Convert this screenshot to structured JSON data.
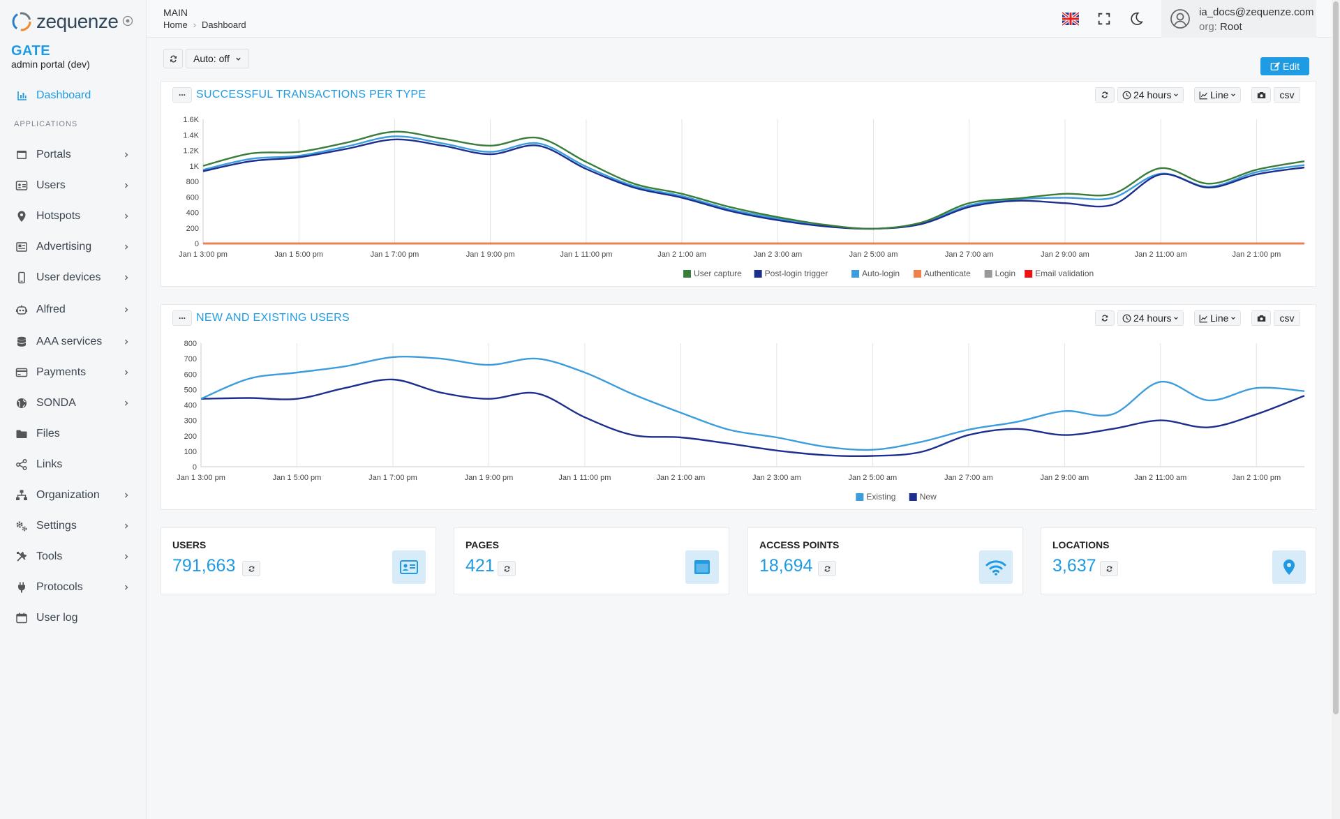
{
  "app": {
    "logo_text": "zequenze",
    "name": "GATE",
    "subtitle": "admin portal (dev)"
  },
  "colors": {
    "accent": "#1e9be3",
    "sidebar_bg": "#f5f6f8"
  },
  "sidebar": {
    "dashboard_label": "Dashboard",
    "section_title": "APPLICATIONS",
    "items": [
      {
        "label": "Portals",
        "icon": "window-icon",
        "has_chevron": true
      },
      {
        "label": "Users",
        "icon": "id-card-icon",
        "has_chevron": true
      },
      {
        "label": "Hotspots",
        "icon": "map-pin-icon",
        "has_chevron": true
      },
      {
        "label": "Advertising",
        "icon": "newspaper-icon",
        "has_chevron": true
      },
      {
        "label": "User devices",
        "icon": "mobile-icon",
        "has_chevron": true
      },
      {
        "label": "Alfred",
        "icon": "robot-icon",
        "has_chevron": true
      },
      {
        "label": "AAA services",
        "icon": "database-icon",
        "has_chevron": true
      },
      {
        "label": "Payments",
        "icon": "credit-card-icon",
        "has_chevron": true
      },
      {
        "label": "SONDA",
        "icon": "globe-icon",
        "has_chevron": true
      },
      {
        "label": "Files",
        "icon": "folder-icon",
        "has_chevron": false
      },
      {
        "label": "Links",
        "icon": "share-icon",
        "has_chevron": false
      },
      {
        "label": "Organization",
        "icon": "sitemap-icon",
        "has_chevron": true
      },
      {
        "label": "Settings",
        "icon": "gears-icon",
        "has_chevron": true
      },
      {
        "label": "Tools",
        "icon": "tools-icon",
        "has_chevron": true
      },
      {
        "label": "Protocols",
        "icon": "plug-icon",
        "has_chevron": true
      },
      {
        "label": "User log",
        "icon": "calendar-icon",
        "has_chevron": false
      }
    ]
  },
  "header": {
    "section": "MAIN",
    "breadcrumb": [
      "Home",
      "Dashboard"
    ],
    "user_email": "ia_docs@zequenze.com",
    "org_label": "org:",
    "org_value": "Root"
  },
  "toolbar": {
    "auto_label": "Auto: off",
    "edit_label": "Edit"
  },
  "panels": [
    {
      "title": "SUCCESSFUL TRANSACTIONS PER TYPE",
      "range_label": "24 hours",
      "chart_type_label": "Line",
      "csv_label": "csv"
    },
    {
      "title": "NEW AND EXISTING USERS",
      "range_label": "24 hours",
      "chart_type_label": "Line",
      "csv_label": "csv"
    }
  ],
  "chart_data": [
    {
      "type": "line",
      "title": "SUCCESSFUL TRANSACTIONS PER TYPE",
      "x": [
        "Jan 1 3:00 pm",
        "Jan 1 4:00 pm",
        "Jan 1 5:00 pm",
        "Jan 1 6:00 pm",
        "Jan 1 7:00 pm",
        "Jan 1 8:00 pm",
        "Jan 1 9:00 pm",
        "Jan 1 10:00 pm",
        "Jan 1 11:00 pm",
        "Jan 2 12:00 am",
        "Jan 2 1:00 am",
        "Jan 2 2:00 am",
        "Jan 2 3:00 am",
        "Jan 2 4:00 am",
        "Jan 2 5:00 am",
        "Jan 2 6:00 am",
        "Jan 2 7:00 am",
        "Jan 2 8:00 am",
        "Jan 2 9:00 am",
        "Jan 2 10:00 am",
        "Jan 2 11:00 am",
        "Jan 2 12:00 pm",
        "Jan 2 1:00 pm",
        "Jan 2 2:00 pm"
      ],
      "xticks": [
        "Jan 1 3:00 pm",
        "Jan 1 5:00 pm",
        "Jan 1 7:00 pm",
        "Jan 1 9:00 pm",
        "Jan 1 11:00 pm",
        "Jan 2 1:00 am",
        "Jan 2 3:00 am",
        "Jan 2 5:00 am",
        "Jan 2 7:00 am",
        "Jan 2 9:00 am",
        "Jan 2 11:00 am",
        "Jan 2 1:00 pm"
      ],
      "yticks": [
        "0",
        "200",
        "400",
        "600",
        "800",
        "1K",
        "1.2K",
        "1.4K",
        "1.6K"
      ],
      "ylim": [
        0,
        1600
      ],
      "grid": "vertical",
      "legend": "bottom-center",
      "series": [
        {
          "name": "User capture",
          "color": "#3a7d3b",
          "values": [
            1000,
            1160,
            1180,
            1300,
            1440,
            1350,
            1260,
            1360,
            1050,
            770,
            640,
            470,
            340,
            240,
            190,
            270,
            520,
            580,
            640,
            640,
            970,
            770,
            950,
            1060
          ]
        },
        {
          "name": "Post-login trigger",
          "color": "#1c2f8f",
          "values": [
            930,
            1060,
            1110,
            1220,
            1340,
            1260,
            1150,
            1260,
            960,
            720,
            590,
            420,
            300,
            220,
            190,
            250,
            470,
            550,
            520,
            500,
            890,
            720,
            890,
            980
          ]
        },
        {
          "name": "Auto-login",
          "color": "#3c9cdc",
          "values": [
            950,
            1090,
            1130,
            1250,
            1380,
            1290,
            1180,
            1290,
            990,
            740,
            610,
            440,
            320,
            230,
            190,
            260,
            490,
            570,
            590,
            590,
            900,
            730,
            920,
            1010
          ]
        },
        {
          "name": "Authenticate",
          "color": "#f07f4a",
          "values": [
            0,
            0,
            0,
            0,
            0,
            0,
            0,
            0,
            0,
            0,
            0,
            0,
            0,
            0,
            0,
            0,
            0,
            0,
            0,
            0,
            0,
            0,
            0,
            0
          ]
        },
        {
          "name": "Login",
          "color": "#999999",
          "values": [
            0,
            0,
            0,
            0,
            0,
            0,
            0,
            0,
            0,
            0,
            0,
            0,
            0,
            0,
            0,
            0,
            0,
            0,
            0,
            0,
            0,
            0,
            0,
            0
          ]
        },
        {
          "name": "Email validation",
          "color": "#ee1111",
          "values": [
            0,
            0,
            0,
            0,
            0,
            0,
            0,
            0,
            0,
            0,
            0,
            0,
            0,
            0,
            0,
            0,
            0,
            0,
            0,
            0,
            0,
            0,
            0,
            0
          ]
        }
      ]
    },
    {
      "type": "line",
      "title": "NEW AND EXISTING USERS",
      "x": [
        "Jan 1 3:00 pm",
        "Jan 1 4:00 pm",
        "Jan 1 5:00 pm",
        "Jan 1 6:00 pm",
        "Jan 1 7:00 pm",
        "Jan 1 8:00 pm",
        "Jan 1 9:00 pm",
        "Jan 1 10:00 pm",
        "Jan 1 11:00 pm",
        "Jan 2 12:00 am",
        "Jan 2 1:00 am",
        "Jan 2 2:00 am",
        "Jan 2 3:00 am",
        "Jan 2 4:00 am",
        "Jan 2 5:00 am",
        "Jan 2 6:00 am",
        "Jan 2 7:00 am",
        "Jan 2 8:00 am",
        "Jan 2 9:00 am",
        "Jan 2 10:00 am",
        "Jan 2 11:00 am",
        "Jan 2 12:00 pm",
        "Jan 2 1:00 pm",
        "Jan 2 2:00 pm"
      ],
      "xticks": [
        "Jan 1 3:00 pm",
        "Jan 1 5:00 pm",
        "Jan 1 7:00 pm",
        "Jan 1 9:00 pm",
        "Jan 1 11:00 pm",
        "Jan 2 1:00 am",
        "Jan 2 3:00 am",
        "Jan 2 5:00 am",
        "Jan 2 7:00 am",
        "Jan 2 9:00 am",
        "Jan 2 11:00 am",
        "Jan 2 1:00 pm"
      ],
      "yticks": [
        "0",
        "100",
        "200",
        "300",
        "400",
        "500",
        "600",
        "700",
        "800"
      ],
      "ylim": [
        0,
        800
      ],
      "grid": "vertical",
      "legend": "bottom-center",
      "series": [
        {
          "name": "Existing",
          "color": "#3c9cdc",
          "values": [
            440,
            570,
            610,
            650,
            710,
            700,
            660,
            700,
            610,
            470,
            350,
            240,
            190,
            130,
            110,
            160,
            240,
            290,
            360,
            340,
            550,
            430,
            510,
            490
          ]
        },
        {
          "name": "New",
          "color": "#1c2f8f",
          "values": [
            440,
            445,
            440,
            510,
            565,
            480,
            440,
            475,
            320,
            205,
            190,
            150,
            105,
            75,
            70,
            95,
            205,
            245,
            205,
            245,
            300,
            255,
            340,
            460
          ]
        }
      ]
    }
  ],
  "stats": [
    {
      "title": "USERS",
      "value": "791,663",
      "icon": "id-card-icon"
    },
    {
      "title": "PAGES",
      "value": "421",
      "icon": "window-icon"
    },
    {
      "title": "ACCESS POINTS",
      "value": "18,694",
      "icon": "wifi-icon"
    },
    {
      "title": "LOCATIONS",
      "value": "3,637",
      "icon": "map-marker-icon"
    }
  ]
}
